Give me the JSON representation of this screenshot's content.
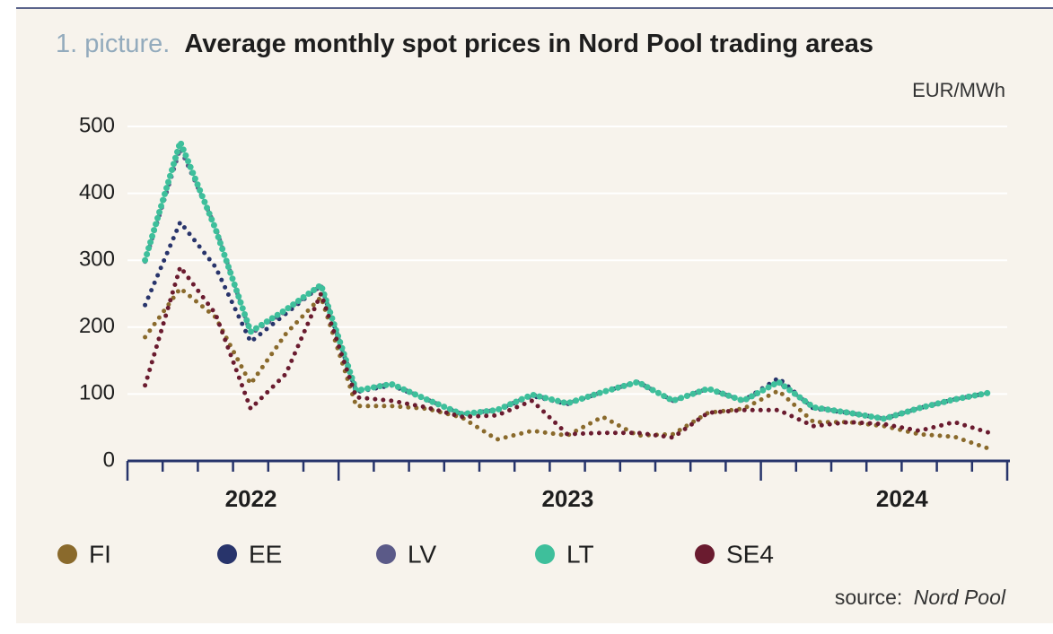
{
  "chart_data": {
    "type": "line",
    "title_prefix": "1. picture.",
    "title": "Average monthly spot prices in Nord Pool trading areas",
    "unit_label": "EUR/MWh",
    "source_label": "source:",
    "source": "Nord Pool",
    "categories": [
      null,
      null,
      null,
      null,
      null,
      null,
      null,
      null,
      null,
      null,
      null,
      null,
      null,
      null,
      null,
      null,
      null,
      null,
      null,
      null,
      null,
      null,
      null,
      null,
      null
    ],
    "x_groups": [
      {
        "label": "2022",
        "count": 6
      },
      {
        "label": "2023",
        "count": 12
      },
      {
        "label": "2024",
        "count": 7
      }
    ],
    "ylim": [
      0,
      500
    ],
    "yticks": [
      0,
      100,
      200,
      300,
      400,
      500
    ],
    "grid": true,
    "series": [
      {
        "name": "FI",
        "color": "#8a6a2c",
        "values": [
          185,
          258,
          215,
          115,
          190,
          245,
          82,
          82,
          78,
          65,
          32,
          45,
          38,
          66,
          38,
          40,
          72,
          78,
          105,
          58,
          58,
          52,
          40,
          36,
          18
        ]
      },
      {
        "name": "EE",
        "color": "#28346b",
        "values": [
          233,
          357,
          290,
          178,
          220,
          262,
          103,
          113,
          92,
          70,
          76,
          97,
          85,
          103,
          118,
          90,
          108,
          90,
          124,
          78,
          72,
          63,
          79,
          92,
          102
        ]
      },
      {
        "name": "LV",
        "color": "#5b5a88",
        "values": [
          298,
          467,
          350,
          190,
          224,
          262,
          105,
          115,
          92,
          70,
          76,
          99,
          86,
          103,
          118,
          90,
          108,
          90,
          118,
          80,
          72,
          63,
          79,
          92,
          102
        ]
      },
      {
        "name": "LT",
        "color": "#3ebf9b",
        "values": [
          300,
          477,
          347,
          193,
          226,
          263,
          105,
          115,
          92,
          70,
          76,
          99,
          86,
          103,
          118,
          90,
          108,
          90,
          118,
          80,
          72,
          63,
          79,
          92,
          102
        ]
      },
      {
        "name": "SE4",
        "color": "#6a1b2f",
        "values": [
          113,
          290,
          220,
          78,
          130,
          250,
          95,
          90,
          80,
          66,
          68,
          90,
          40,
          42,
          42,
          35,
          72,
          76,
          76,
          52,
          58,
          55,
          45,
          58,
          42
        ]
      }
    ]
  }
}
